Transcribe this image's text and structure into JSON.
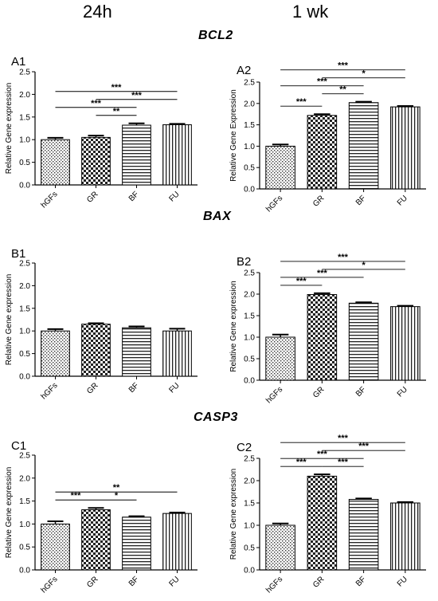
{
  "column_headers": [
    "24h",
    "1 wk"
  ],
  "gene_titles": [
    "BCL2",
    "BAX",
    "CASP3"
  ],
  "chart_data": [
    {
      "panel": "A1",
      "type": "bar",
      "categories": [
        "hGFs",
        "GR",
        "BF",
        "FU"
      ],
      "values": [
        1.0,
        1.05,
        1.32,
        1.33
      ],
      "errors": [
        0.04,
        0.04,
        0.04,
        0.02
      ],
      "ylabel": "Relative Gene expression",
      "ylim": [
        0,
        2.5
      ],
      "yticks": [
        "0.0",
        "0.5",
        "1.0",
        "1.5",
        "2.0",
        "2.5"
      ],
      "significance": [
        {
          "from": "GR",
          "to": "BF",
          "label": "**"
        },
        {
          "from": "hGFs",
          "to": "BF",
          "label": "***"
        },
        {
          "from": "GR",
          "to": "FU",
          "label": "***"
        },
        {
          "from": "hGFs",
          "to": "FU",
          "label": "***"
        }
      ]
    },
    {
      "panel": "A2",
      "type": "bar",
      "categories": [
        "hGFs",
        "GR",
        "BF",
        "FU"
      ],
      "values": [
        1.0,
        1.72,
        2.02,
        1.92
      ],
      "errors": [
        0.04,
        0.03,
        0.02,
        0.02
      ],
      "ylabel": "Relative Gene Expression",
      "ylim": [
        0,
        2.5
      ],
      "yticks": [
        "0.0",
        "0.5",
        "1.0",
        "1.5",
        "2.0",
        "2.5"
      ],
      "significance": [
        {
          "from": "hGFs",
          "to": "GR",
          "label": "***"
        },
        {
          "from": "GR",
          "to": "BF",
          "label": "**"
        },
        {
          "from": "hGFs",
          "to": "BF",
          "label": "***"
        },
        {
          "from": "GR",
          "to": "FU",
          "label": "*"
        },
        {
          "from": "hGFs",
          "to": "FU",
          "label": "***"
        }
      ]
    },
    {
      "panel": "B1",
      "type": "bar",
      "categories": [
        "hGFs",
        "GR",
        "BF",
        "FU"
      ],
      "values": [
        1.0,
        1.15,
        1.07,
        1.0
      ],
      "errors": [
        0.04,
        0.02,
        0.03,
        0.05
      ],
      "ylabel": "Relative Gene expression",
      "ylim": [
        0,
        2.5
      ],
      "yticks": [
        "0.0",
        "0.5",
        "1.0",
        "1.5",
        "2.0",
        "2.5"
      ],
      "significance": []
    },
    {
      "panel": "B2",
      "type": "bar",
      "categories": [
        "hGFs",
        "GR",
        "BF",
        "FU"
      ],
      "values": [
        1.0,
        1.99,
        1.79,
        1.71
      ],
      "errors": [
        0.06,
        0.03,
        0.02,
        0.02
      ],
      "ylabel": "Relative Gene expression",
      "ylim": [
        0,
        2.5
      ],
      "yticks": [
        "0.0",
        "0.5",
        "1.0",
        "1.5",
        "2.0",
        "2.5"
      ],
      "significance": [
        {
          "from": "hGFs",
          "to": "GR",
          "label": "***"
        },
        {
          "from": "hGFs",
          "to": "BF",
          "label": "***"
        },
        {
          "from": "GR",
          "to": "FU",
          "label": "*"
        },
        {
          "from": "hGFs",
          "to": "FU",
          "label": "***"
        }
      ]
    },
    {
      "panel": "C1",
      "type": "bar",
      "categories": [
        "hGFs",
        "GR",
        "BF",
        "FU"
      ],
      "values": [
        1.0,
        1.31,
        1.15,
        1.23
      ],
      "errors": [
        0.06,
        0.04,
        0.02,
        0.02
      ],
      "ylabel": "Relative Gene expression",
      "ylim": [
        0,
        2.5
      ],
      "yticks": [
        "0.0",
        "0.5",
        "1.0",
        "1.5",
        "2.0",
        "2.5"
      ],
      "significance": [
        {
          "from": "hGFs",
          "to": "GR",
          "label": "***"
        },
        {
          "from": "GR",
          "to": "BF",
          "label": "*"
        },
        {
          "from": "hGFs",
          "to": "FU",
          "label": "**"
        }
      ]
    },
    {
      "panel": "C2",
      "type": "bar",
      "categories": [
        "hGFs",
        "GR",
        "BF",
        "FU"
      ],
      "values": [
        1.0,
        2.1,
        1.58,
        1.5
      ],
      "errors": [
        0.04,
        0.04,
        0.02,
        0.02
      ],
      "ylabel": "Relative Gene expression",
      "ylim": [
        0,
        2.5
      ],
      "yticks": [
        "0.0",
        "0.5",
        "1.0",
        "1.5",
        "2.0",
        "2.5"
      ],
      "significance": [
        {
          "from": "hGFs",
          "to": "GR",
          "label": "***"
        },
        {
          "from": "GR",
          "to": "BF",
          "label": "***"
        },
        {
          "from": "GR",
          "to": "FU",
          "label": "***"
        },
        {
          "from": "hGFs",
          "to": "BF",
          "label": "***"
        },
        {
          "from": "hGFs",
          "to": "FU",
          "label": "***"
        }
      ]
    }
  ]
}
